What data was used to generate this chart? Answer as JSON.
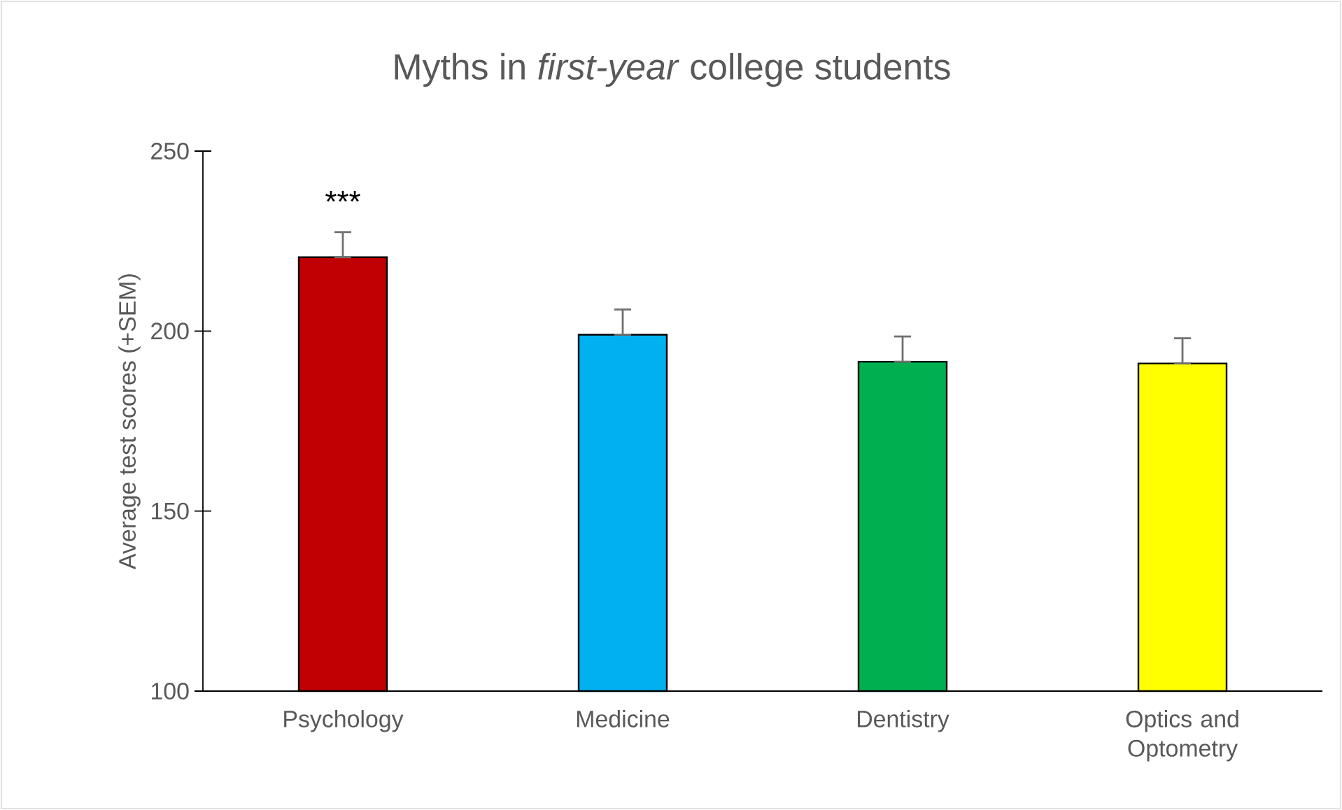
{
  "chart_data": {
    "type": "bar",
    "title": "Myths in *first-year* college students",
    "ylabel": "Average test scores (+SEM)",
    "categories": [
      "Psychology",
      "Medicine",
      "Dentistry",
      "Optics and Optometry"
    ],
    "values": [
      220.5,
      199,
      191.5,
      191
    ],
    "errors": [
      [
        220.5,
        227.5
      ],
      [
        199,
        206
      ],
      [
        191.5,
        198.5
      ],
      [
        191,
        198
      ]
    ],
    "colors": [
      "#c00000",
      "#00b0f0",
      "#00b050",
      "#ffff00"
    ],
    "ylim": [
      100,
      250
    ],
    "yticks": [
      100,
      150,
      200,
      250
    ],
    "grid": false,
    "annotations": [
      "***"
    ]
  }
}
